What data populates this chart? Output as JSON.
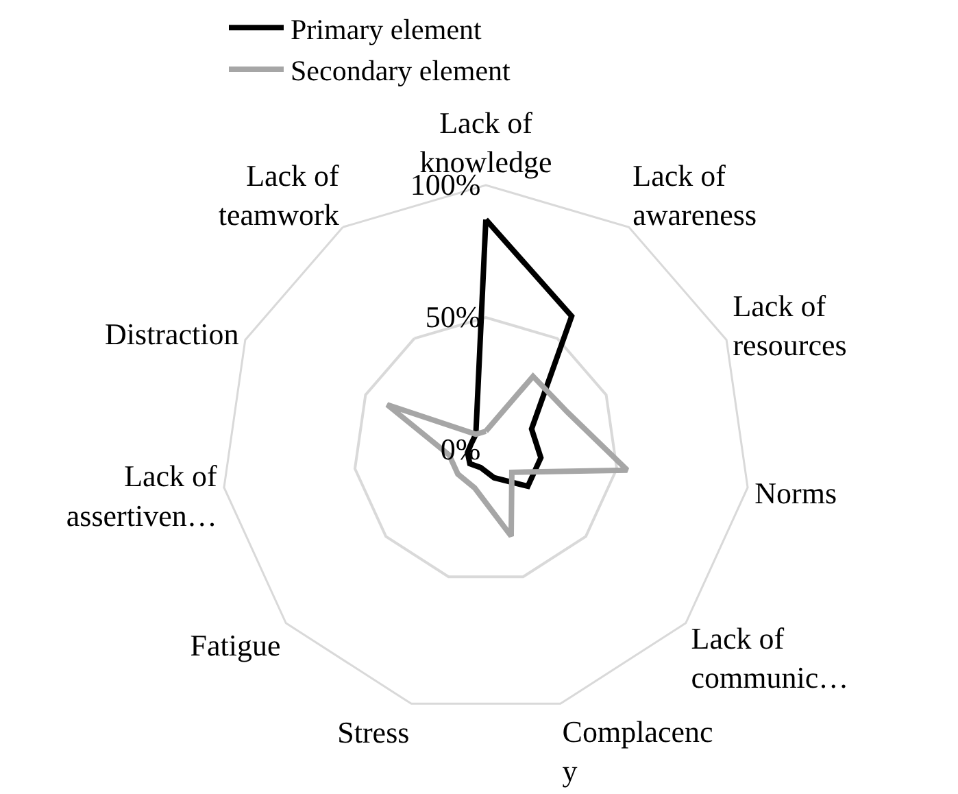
{
  "chart_data": {
    "type": "radar",
    "categories": [
      "Lack of\nknowledge",
      "Lack of\nawareness",
      "Lack of\nresources",
      "Norms",
      "Lack of\ncommunic…",
      "Complacenc\ny",
      "Stress",
      "Fatigue",
      "Lack of\nassertiven…",
      "Distraction",
      "Lack of\nteamwork"
    ],
    "series": [
      {
        "name": "Primary element",
        "color": "#000000",
        "values": [
          87,
          60,
          19,
          21,
          21,
          11,
          7,
          8,
          7,
          6,
          7
        ]
      },
      {
        "name": "Secondary element",
        "color": "#a6a6a6",
        "values": [
          7,
          33,
          34,
          54,
          13,
          34,
          15,
          14,
          14,
          41,
          7
        ]
      }
    ],
    "ylim": [
      0,
      100
    ],
    "yticks": [
      {
        "value": 0,
        "label": "0%"
      },
      {
        "value": 50,
        "label": "50%"
      },
      {
        "value": 100,
        "label": "100%"
      }
    ],
    "grid": true,
    "legend": "top",
    "marker": "none"
  }
}
